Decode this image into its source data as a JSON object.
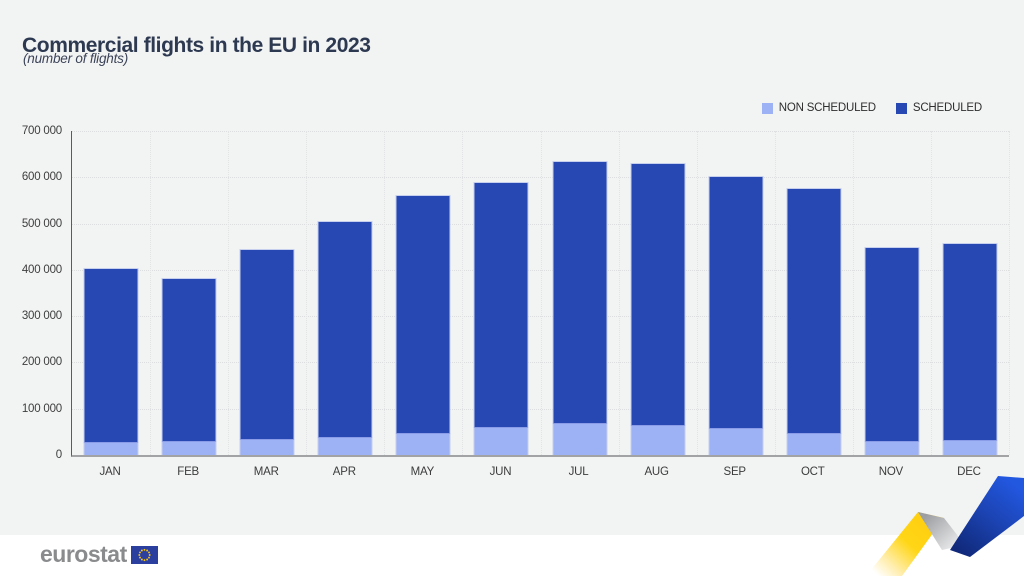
{
  "page": {
    "title": "Commercial flights in the EU in 2023",
    "subtitle": "(number of flights)",
    "background_color": "#f2f3f3",
    "footer_background_color": "#ffffff"
  },
  "legend": {
    "position": "top-right",
    "items": [
      {
        "label": "NON SCHEDULED",
        "color": "#9db2f4"
      },
      {
        "label": "SCHEDULED",
        "color": "#2747b2"
      }
    ]
  },
  "chart_data": {
    "type": "bar",
    "stacked": true,
    "title": "Commercial flights in the EU in 2023",
    "subtitle": "(number of flights)",
    "categories": [
      "JAN",
      "FEB",
      "MAR",
      "APR",
      "MAY",
      "JUN",
      "JUL",
      "AUG",
      "SEP",
      "OCT",
      "NOV",
      "DEC"
    ],
    "series": [
      {
        "name": "NON SCHEDULED",
        "color": "#9db2f4",
        "values": [
          28000,
          31000,
          35000,
          38000,
          47000,
          61000,
          70000,
          64000,
          58000,
          48000,
          31000,
          33000
        ]
      },
      {
        "name": "SCHEDULED",
        "color": "#2747b2",
        "values": [
          377000,
          351000,
          411000,
          468000,
          514000,
          529000,
          566000,
          568000,
          545000,
          529000,
          419000,
          424000
        ]
      }
    ],
    "totals": [
      405000,
      382000,
      446000,
      506000,
      561000,
      590000,
      636000,
      632000,
      603000,
      577000,
      450000,
      457000
    ],
    "xlabel": "",
    "ylabel": "",
    "ylim": [
      0,
      700000
    ],
    "ytick_step": 100000,
    "ytick_labels": [
      "0",
      "100 000",
      "200 000",
      "300 000",
      "400 000",
      "500 000",
      "600 000",
      "700 000"
    ],
    "grid": "dotted",
    "legend_position": "top-right"
  },
  "footer": {
    "logo_text": "eurostat",
    "flag_icon": "eu-flag-icon",
    "ribbon_colors": {
      "yellow": "#ffd617",
      "silver": "#9c9ea1",
      "blue": "#1e4fd0"
    }
  }
}
